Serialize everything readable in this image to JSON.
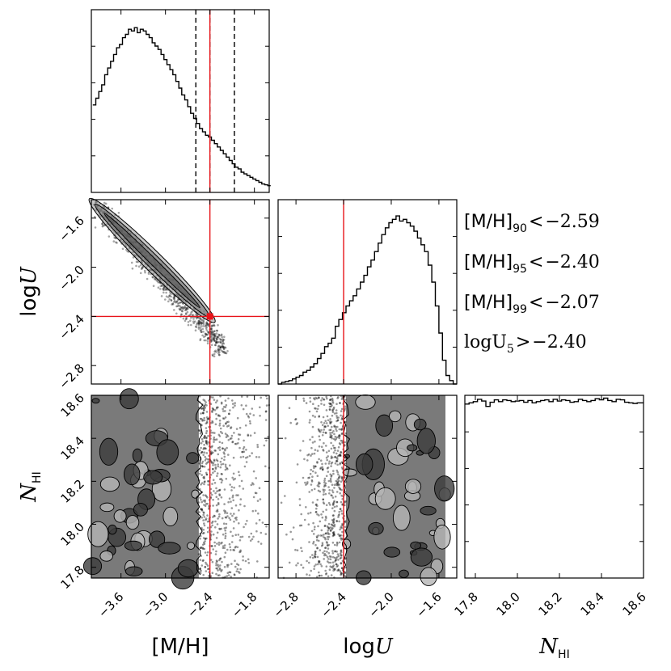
{
  "chart_data": {
    "type": "corner",
    "parameters": [
      "[M/H]",
      "logU",
      "N_HI"
    ],
    "axis_labels": {
      "mh": "[M/H]",
      "logu_prefix": "log",
      "logu_var": "U",
      "nhi_var": "N",
      "nhi_sub": "HI"
    },
    "ranges": {
      "mh": [
        -4.0,
        -1.6
      ],
      "logu": [
        -2.95,
        -1.45
      ],
      "nhi": [
        17.75,
        18.6
      ]
    },
    "ticks": {
      "mh": [
        -3.6,
        -3.0,
        -2.4,
        -1.8
      ],
      "mh_labels": [
        "−3.6",
        "−3.0",
        "−2.4",
        "−1.8"
      ],
      "logu": [
        -2.8,
        -2.4,
        -2.0,
        -1.6
      ],
      "logu_labels": [
        "−2.8",
        "−2.4",
        "−2.0",
        "−1.6"
      ],
      "nhi": [
        17.8,
        18.0,
        18.2,
        18.4,
        18.6
      ],
      "nhi_labels": [
        "17.8",
        "18.0",
        "18.2",
        "18.4",
        "18.6"
      ]
    },
    "reference_lines": {
      "mh_red": -2.4,
      "logu_red": -2.4,
      "mh_dashed": [
        -2.59,
        -2.4,
        -2.07
      ]
    },
    "annotations": [
      {
        "main": "[M/H]",
        "sub": "90",
        "rel": "<",
        "value": "−2.59"
      },
      {
        "main": "[M/H]",
        "sub": "95",
        "rel": "<",
        "value": "−2.40"
      },
      {
        "main": "[M/H]",
        "sub": "99",
        "rel": "<",
        "value": "−2.07"
      },
      {
        "main": "logU",
        "sub": "5",
        "rel": ">",
        "value": "−2.40"
      }
    ],
    "hist_mh": {
      "bin_start": -3.98,
      "bin_width": 0.04,
      "counts": [
        0.52,
        0.56,
        0.6,
        0.64,
        0.7,
        0.74,
        0.78,
        0.82,
        0.86,
        0.88,
        0.92,
        0.94,
        0.97,
        0.96,
        0.98,
        0.95,
        0.97,
        0.96,
        0.94,
        0.92,
        0.89,
        0.87,
        0.85,
        0.82,
        0.79,
        0.76,
        0.73,
        0.7,
        0.66,
        0.62,
        0.58,
        0.55,
        0.51,
        0.47,
        0.44,
        0.41,
        0.38,
        0.36,
        0.34,
        0.33,
        0.31,
        0.29,
        0.27,
        0.25,
        0.23,
        0.21,
        0.19,
        0.17,
        0.15,
        0.14,
        0.12,
        0.11,
        0.1,
        0.09,
        0.08,
        0.07,
        0.06,
        0.05,
        0.045,
        0.04
      ]
    },
    "hist_logu": {
      "bin_start": -2.95,
      "bin_width": 0.03,
      "counts": [
        0.0,
        0.01,
        0.015,
        0.02,
        0.03,
        0.04,
        0.05,
        0.07,
        0.08,
        0.1,
        0.12,
        0.15,
        0.18,
        0.22,
        0.24,
        0.27,
        0.34,
        0.38,
        0.42,
        0.46,
        0.49,
        0.52,
        0.56,
        0.6,
        0.64,
        0.69,
        0.73,
        0.78,
        0.83,
        0.88,
        0.92,
        0.95,
        0.97,
        0.99,
        0.96,
        0.97,
        0.95,
        0.93,
        0.9,
        0.86,
        0.82,
        0.78,
        0.7,
        0.6,
        0.46,
        0.3,
        0.14,
        0.05,
        0.02,
        0.0
      ]
    },
    "hist_nhi": {
      "bin_start": 17.75,
      "bin_width": 0.02,
      "counts": [
        0.88,
        0.9,
        0.92,
        0.96,
        0.93,
        0.84,
        0.91,
        0.95,
        0.92,
        0.95,
        0.94,
        0.92,
        0.93,
        0.94,
        0.91,
        0.94,
        0.9,
        0.92,
        0.94,
        0.95,
        0.92,
        0.96,
        0.93,
        0.95,
        0.94,
        0.91,
        0.92,
        0.96,
        0.94,
        0.92,
        0.94,
        0.97,
        0.95,
        0.98,
        0.94,
        0.92,
        0.96,
        0.95,
        0.91,
        0.9,
        0.89,
        0.9,
        0.9
      ]
    }
  }
}
